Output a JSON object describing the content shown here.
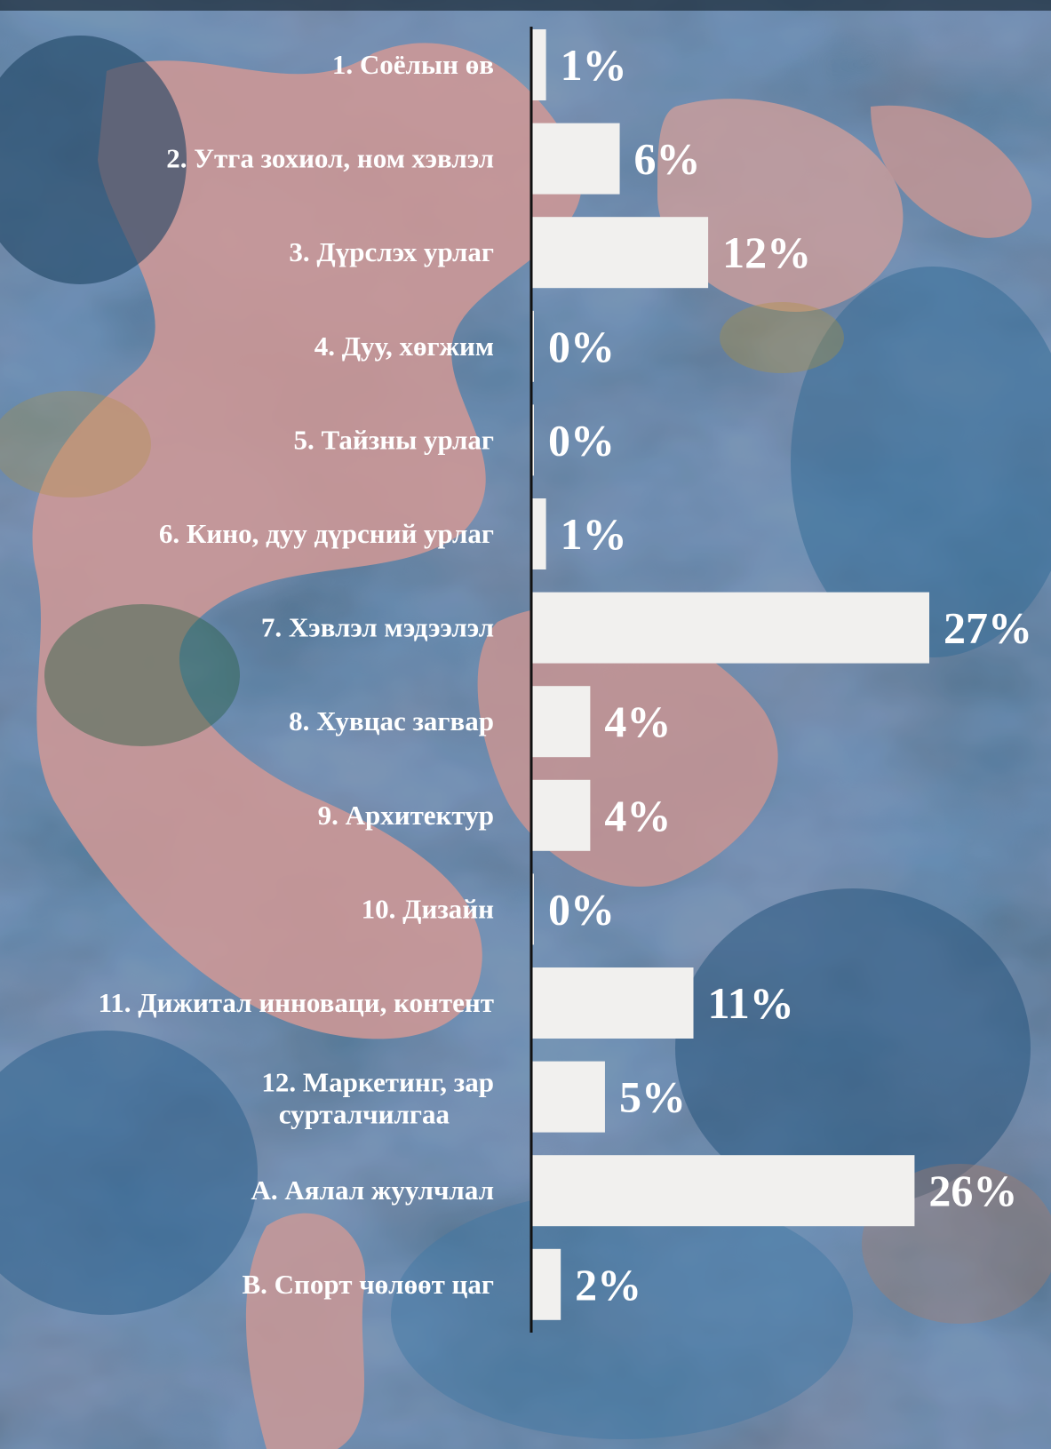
{
  "colors": {
    "bar": "#f1f0ee",
    "text": "#ffffff",
    "axis": "#111111",
    "background_palette": [
      "#2f5f86",
      "#e6a9a5",
      "#1e4a66",
      "#3f7fae",
      "#c9a23a",
      "#2f6a4a"
    ]
  },
  "chart_data": {
    "type": "bar",
    "orientation": "horizontal",
    "title": "",
    "xlabel": "",
    "ylabel": "",
    "xlim": [
      0,
      27
    ],
    "grid": false,
    "legend": "none",
    "categories": [
      "1.   Соёлын өв",
      "2.   Утга зохиол, ном хэвлэл",
      "3.   Дүрслэх урлаг",
      "4.   Дуу, хөгжим",
      "5.   Тайзны урлаг",
      "6.   Кино, дуу дүрсний урлаг",
      "7.   Хэвлэл мэдээлэл",
      "8.   Хувцас загвар",
      "9.   Архитектур",
      "10. Дизайн",
      "11. Дижитал инноваци, контент",
      "12.  Маркетинг, зар сурталчилгаа",
      "А. Аялал жуулчлал",
      "В. Спорт чөлөөт цаг"
    ],
    "values": [
      1,
      6,
      12,
      0,
      0,
      1,
      27,
      4,
      4,
      0,
      11,
      5,
      26,
      2
    ],
    "value_labels": [
      "1%",
      "6%",
      "12%",
      "0%",
      "0%",
      "1%",
      "27%",
      "4%",
      "4%",
      "0%",
      "11%",
      "5%",
      "26%",
      "2%"
    ]
  }
}
